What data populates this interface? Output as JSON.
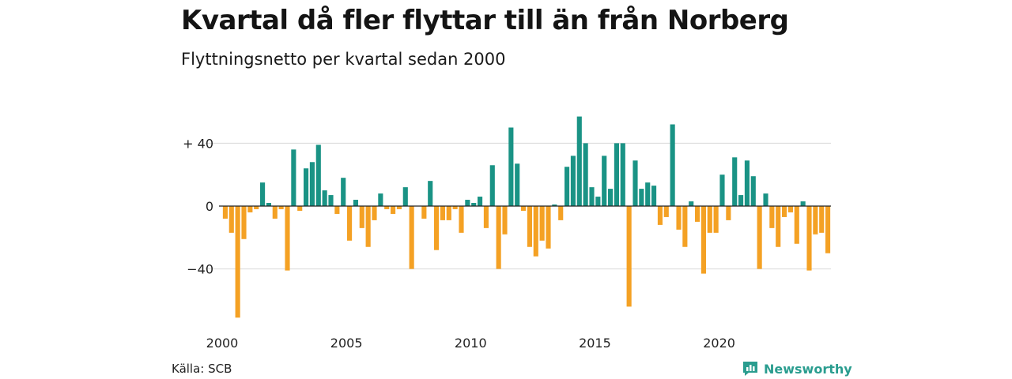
{
  "header": {
    "title": "Kvartal då fler flyttar till än från Norberg",
    "subtitle": "Flyttningsnetto per kvartal sedan 2000"
  },
  "footer": {
    "source": "Källa: SCB",
    "brand": "Newsworthy"
  },
  "colors": {
    "positive": "#1a9385",
    "negative": "#f4a124",
    "gridline": "#d9d9d9",
    "zero_line": "#222222",
    "brand": "#2a9d8f"
  },
  "icons": {
    "brand_logo": "newsworthy-logo-icon"
  },
  "chart_data": {
    "type": "bar",
    "title": "Kvartal då fler flyttar till än från Norberg",
    "subtitle": "Flyttningsnetto per kvartal sedan 2000",
    "xlabel": "",
    "ylabel": "",
    "grid": true,
    "legend": "none",
    "ylim": [
      -72,
      58
    ],
    "yticks": [
      40,
      0,
      -40
    ],
    "ytick_labels": [
      "+ 40",
      "0",
      "−40"
    ],
    "xticks": [
      2000,
      2005,
      2010,
      2015,
      2020
    ],
    "xtick_labels": [
      "2000",
      "2005",
      "2010",
      "2015",
      "2020"
    ],
    "x_start_year": 2000,
    "periods_per_year": 4,
    "values": [
      -8,
      -17,
      -71,
      -21,
      -4,
      -2,
      15,
      2,
      -8,
      -2,
      -41,
      36,
      -3,
      24,
      28,
      39,
      10,
      7,
      -5,
      18,
      -22,
      4,
      -14,
      -26,
      -9,
      8,
      -2,
      -5,
      -2,
      12,
      -40,
      0,
      -8,
      16,
      -28,
      -9,
      -9,
      -2,
      -17,
      4,
      2,
      6,
      -14,
      26,
      -40,
      -18,
      50,
      27,
      -3,
      -26,
      -32,
      -22,
      -27,
      1,
      -9,
      25,
      32,
      57,
      40,
      12,
      6,
      32,
      11,
      40,
      40,
      -64,
      29,
      11,
      15,
      13,
      -12,
      -7,
      52,
      -15,
      -26,
      3,
      -10,
      -43,
      -17,
      -17,
      20,
      -9,
      31,
      7,
      29,
      19,
      -40,
      8,
      -14,
      -26,
      -7,
      -4,
      -24,
      3,
      -41,
      -18,
      -17,
      -30
    ]
  }
}
